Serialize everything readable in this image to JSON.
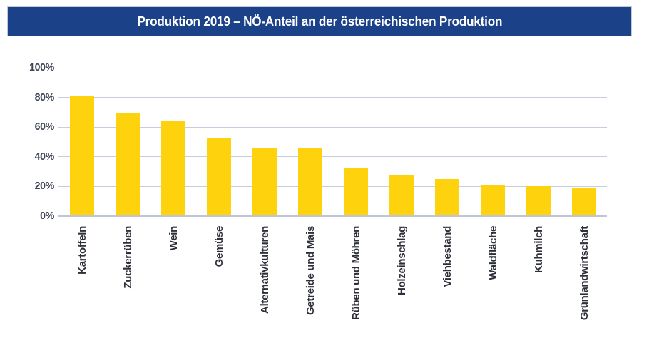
{
  "header": {
    "title": "Produktion 2019 – NÖ-Anteil an der österreichischen Produktion"
  },
  "chart_data": {
    "type": "bar",
    "title": "Produktion 2019 – NÖ-Anteil an der österreichischen Produktion",
    "categories": [
      "Kartoffeln",
      "Zuckerrüben",
      "Wein",
      "Gemüse",
      "Alternativkulturen",
      "Getreide und Mais",
      "Rüben und Möhren",
      "Holzeinschlag",
      "Viehbestand",
      "Waldfläche",
      "Kuhmilch",
      "Grünlandwirtschaft"
    ],
    "values": [
      81,
      69,
      64,
      53,
      46,
      46,
      32,
      28,
      25,
      21,
      20,
      19
    ],
    "unit": "%",
    "xlabel": "",
    "ylabel": "",
    "ylim": [
      0,
      100
    ],
    "yticks": [
      0,
      20,
      40,
      60,
      80,
      100
    ],
    "ytick_labels": [
      "0%",
      "20%",
      "40%",
      "60%",
      "80%",
      "100%"
    ],
    "grid": true,
    "legend": false
  },
  "theme": {
    "band_blue": "#1b4189",
    "band_border": "#c3c9d6",
    "title_color": "#ffffff",
    "bar_yellow": "#ffd20e",
    "gridline_color": "#c7cdda",
    "axis_line_color": "#bfc5d4",
    "ytick_color": "#3d4456",
    "xlabel_color": "#2d3038"
  }
}
